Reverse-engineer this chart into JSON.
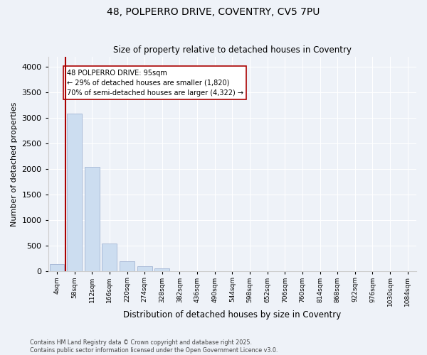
{
  "title_line1": "48, POLPERRO DRIVE, COVENTRY, CV5 7PU",
  "title_line2": "Size of property relative to detached houses in Coventry",
  "xlabel": "Distribution of detached houses by size in Coventry",
  "ylabel": "Number of detached properties",
  "bar_labels": [
    "4sqm",
    "58sqm",
    "112sqm",
    "166sqm",
    "220sqm",
    "274sqm",
    "328sqm",
    "382sqm",
    "436sqm",
    "490sqm",
    "544sqm",
    "598sqm",
    "652sqm",
    "706sqm",
    "760sqm",
    "814sqm",
    "868sqm",
    "922sqm",
    "976sqm",
    "1030sqm",
    "1084sqm"
  ],
  "bar_heights": [
    150,
    3080,
    2050,
    540,
    200,
    100,
    60,
    0,
    0,
    0,
    0,
    0,
    0,
    0,
    0,
    0,
    0,
    0,
    0,
    0,
    0
  ],
  "bar_color": "#ccddf0",
  "bar_edge_color": "#aabbd8",
  "ylim": [
    0,
    4200
  ],
  "yticks": [
    0,
    500,
    1000,
    1500,
    2000,
    2500,
    3000,
    3500,
    4000
  ],
  "red_line_color": "#aa0000",
  "annotation_text": "48 POLPERRO DRIVE: 95sqm\n← 29% of detached houses are smaller (1,820)\n70% of semi-detached houses are larger (4,322) →",
  "annotation_box_color": "#ffffff",
  "annotation_box_edgecolor": "#aa0000",
  "footer_line1": "Contains HM Land Registry data © Crown copyright and database right 2025.",
  "footer_line2": "Contains public sector information licensed under the Open Government Licence v3.0.",
  "background_color": "#eef2f8",
  "grid_color": "#ffffff",
  "fig_width": 6.0,
  "fig_height": 5.0,
  "dpi": 100
}
